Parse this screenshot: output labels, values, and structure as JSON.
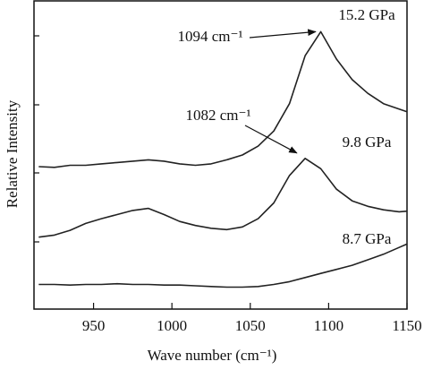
{
  "chart_data": {
    "type": "line",
    "x_label": "Wave number (cm⁻¹)",
    "y_label": "Relative Intensity",
    "x": [
      915,
      925,
      935,
      945,
      955,
      965,
      975,
      985,
      995,
      1005,
      1015,
      1025,
      1035,
      1045,
      1055,
      1065,
      1075,
      1085,
      1095,
      1105,
      1115,
      1125,
      1135,
      1145,
      1150
    ],
    "series": [
      {
        "name": "8.7 GPa",
        "color": "#222222",
        "values": [
          0.36,
          0.36,
          0.35,
          0.36,
          0.36,
          0.37,
          0.36,
          0.36,
          0.35,
          0.35,
          0.34,
          0.33,
          0.32,
          0.32,
          0.33,
          0.36,
          0.4,
          0.46,
          0.52,
          0.58,
          0.64,
          0.72,
          0.8,
          0.9,
          0.95
        ]
      },
      {
        "name": "9.8 GPa",
        "color": "#222222",
        "values": [
          1.05,
          1.08,
          1.15,
          1.25,
          1.32,
          1.38,
          1.44,
          1.47,
          1.38,
          1.28,
          1.22,
          1.18,
          1.16,
          1.2,
          1.32,
          1.55,
          1.95,
          2.2,
          2.05,
          1.75,
          1.58,
          1.5,
          1.45,
          1.42,
          1.43
        ]
      },
      {
        "name": "15.2 GPa",
        "color": "#222222",
        "values": [
          2.08,
          2.07,
          2.1,
          2.1,
          2.12,
          2.14,
          2.16,
          2.18,
          2.16,
          2.12,
          2.1,
          2.12,
          2.18,
          2.25,
          2.38,
          2.6,
          3.0,
          3.7,
          4.05,
          3.65,
          3.35,
          3.15,
          3.0,
          2.92,
          2.88
        ]
      }
    ],
    "annotations": [
      {
        "text": "1094 cm⁻¹",
        "x": 1094,
        "y": 4.05
      },
      {
        "text": "1082 cm⁻¹",
        "x": 1082,
        "y": 2.2
      }
    ],
    "xlim": [
      912,
      1150
    ],
    "xticks": [
      950,
      1000,
      1050,
      1100,
      1150
    ],
    "ylim": [
      0,
      4.5
    ]
  }
}
